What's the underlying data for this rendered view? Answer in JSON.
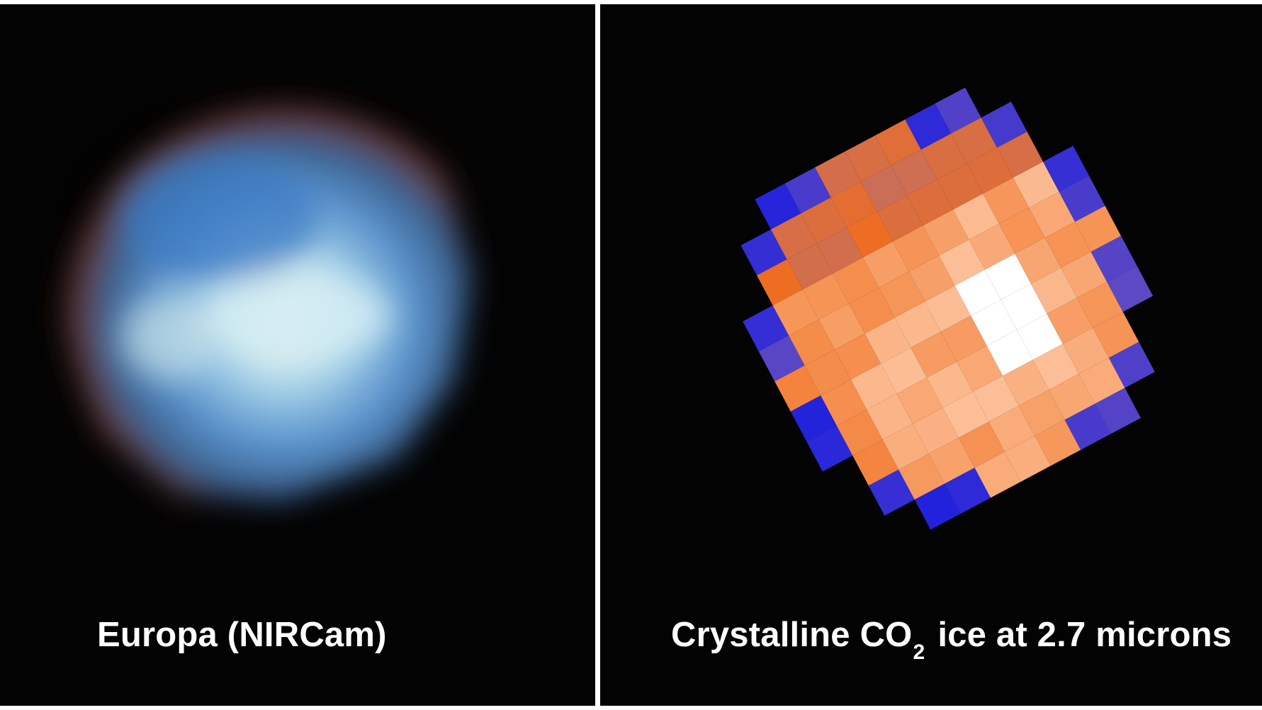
{
  "left_panel": {
    "caption": "Europa (NIRCam)",
    "palette": {
      "deep_blue": "#3f7fc9",
      "light_blue": "#9fd3ee",
      "highlight": "#fffbe8",
      "rim": "#7a3a2c",
      "background": "#030303"
    }
  },
  "right_panel": {
    "caption_main": "Crystalline CO",
    "caption_sub": "2",
    "caption_rest": "ice at 2.7 microns",
    "palette": {
      "edge_blue": "#2222dd",
      "purple": "#8a6ab0",
      "orange": "#f07a2a",
      "light_orange": "#fbb890",
      "white": "#ffffff",
      "background": "#030303"
    }
  },
  "divider_color": "#ffffff"
}
